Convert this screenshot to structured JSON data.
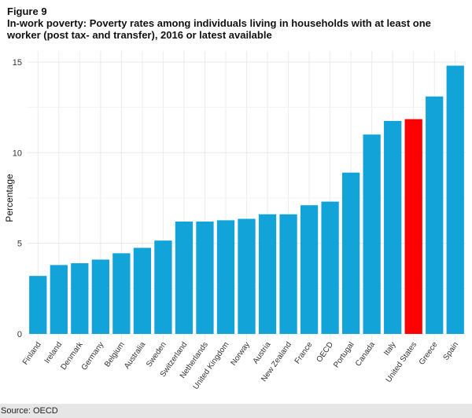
{
  "figure_label": "Figure 9",
  "source": "Source: OECD",
  "chart_data": {
    "type": "bar",
    "title": "In-work poverty: Poverty rates among individuals living in households with at least one worker (post tax- and transfer), 2016 or latest available",
    "xlabel": "",
    "ylabel": "Percentage",
    "ylim": [
      0,
      15.5
    ],
    "yticks": [
      0,
      5,
      10,
      15
    ],
    "grid": true,
    "legend": "none",
    "categories": [
      "Finland",
      "Ireland",
      "Denmark",
      "Germany",
      "Belgium",
      "Australia",
      "Sweden",
      "Switzerland",
      "Netherlands",
      "United Kingdom",
      "Norway",
      "Austria",
      "New Zealand",
      "France",
      "OECD",
      "Portugal",
      "Canada",
      "Italy",
      "United States",
      "Greece",
      "Spain"
    ],
    "values": [
      3.2,
      3.8,
      3.9,
      4.1,
      4.45,
      4.75,
      5.15,
      6.2,
      6.2,
      6.27,
      6.35,
      6.6,
      6.6,
      7.1,
      7.3,
      8.9,
      11.0,
      11.75,
      11.85,
      13.1,
      14.8
    ],
    "highlight": "United States",
    "colors": {
      "default": "#12a3d8",
      "highlight": "#ff0000"
    }
  }
}
